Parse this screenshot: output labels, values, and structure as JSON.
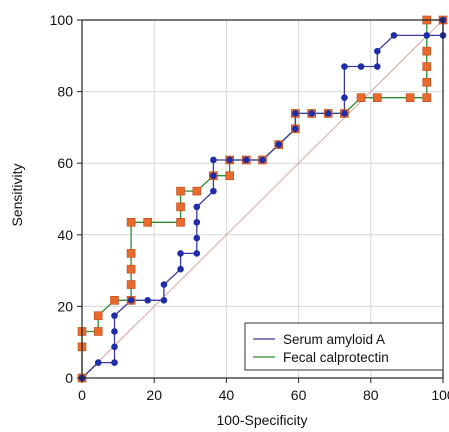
{
  "chart_data": {
    "type": "line",
    "title": "",
    "xlabel": "100-Specificity",
    "ylabel": "Sensitivity",
    "xlim": [
      0,
      100
    ],
    "ylim": [
      0,
      100
    ],
    "xticks": [
      0,
      20,
      40,
      60,
      80,
      100
    ],
    "yticks": [
      0,
      20,
      40,
      60,
      80,
      100
    ],
    "x_tick_labels": [
      "0",
      "20",
      "40",
      "60",
      "80",
      "100"
    ],
    "y_tick_labels": [
      "0",
      "20",
      "40",
      "60",
      "80",
      "100"
    ],
    "grid": true,
    "legend_position": "bottom-right",
    "reference_line": {
      "x": [
        0,
        100
      ],
      "y": [
        0,
        100
      ],
      "color": "#d9a7a7"
    },
    "series": [
      {
        "name": "Serum amyloid A",
        "color": "#3a3a9a",
        "marker": "circle",
        "marker_color": "#1f2ea8",
        "x": [
          0,
          0,
          4.5,
          9,
          9,
          9,
          9,
          13.6,
          18.2,
          22.7,
          22.7,
          27.3,
          27.3,
          31.8,
          31.8,
          31.8,
          31.8,
          36.4,
          36.4,
          36.4,
          40.9,
          45.5,
          50,
          54.5,
          54.5,
          59.1,
          59.1,
          63.6,
          68.2,
          72.7,
          72.7,
          72.7,
          77.3,
          81.8,
          81.8,
          86.4,
          95.5,
          100,
          100
        ],
        "y": [
          0,
          0,
          4.3,
          4.3,
          8.7,
          13,
          17.4,
          21.7,
          21.7,
          21.7,
          26.1,
          30.4,
          34.8,
          34.8,
          39.1,
          43.5,
          47.8,
          52.2,
          56.5,
          60.9,
          60.9,
          60.9,
          60.9,
          65.2,
          65.2,
          69.6,
          73.9,
          73.9,
          73.9,
          73.9,
          78.3,
          87,
          87,
          87,
          91.3,
          95.7,
          95.7,
          95.7,
          100
        ]
      },
      {
        "name": "Fecal calprotectin",
        "color": "#2e8b2e",
        "marker": "square",
        "marker_color": "#e86a2e",
        "x": [
          0,
          0,
          0,
          4.5,
          4.5,
          9,
          13.6,
          13.6,
          13.6,
          13.6,
          13.6,
          18.2,
          27.3,
          27.3,
          27.3,
          31.8,
          36.4,
          40.9,
          40.9,
          45.5,
          50,
          54.5,
          59.1,
          59.1,
          63.6,
          68.2,
          72.7,
          77.3,
          81.8,
          90.9,
          95.5,
          95.5,
          95.5,
          95.5,
          95.5,
          100
        ],
        "y": [
          0,
          8.7,
          13,
          13,
          17.4,
          21.7,
          21.7,
          26.1,
          30.4,
          34.8,
          43.5,
          43.5,
          43.5,
          47.8,
          52.2,
          52.2,
          56.5,
          56.5,
          60.9,
          60.9,
          60.9,
          65.2,
          69.6,
          73.9,
          73.9,
          73.9,
          73.9,
          78.3,
          78.3,
          78.3,
          78.3,
          82.6,
          87,
          91.3,
          100,
          100
        ]
      }
    ]
  }
}
